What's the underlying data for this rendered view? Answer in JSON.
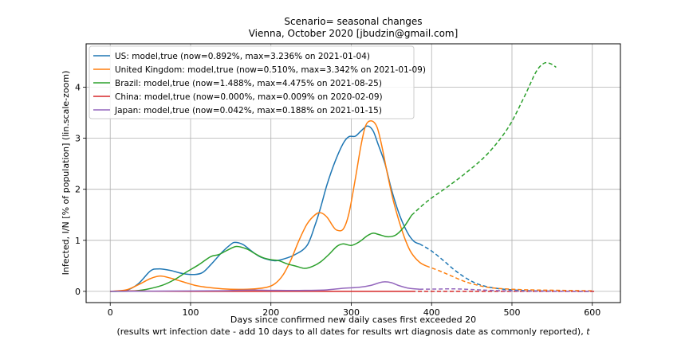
{
  "chart_data": {
    "type": "line",
    "title": "Scenario= seasonal changes",
    "subtitle": "Vienna, October 2020 [jbudzin@gmail.com]",
    "xlabel": "Days since confirmed new daily cases first exceeded 20",
    "xlabel_note": "(results wrt infection date - add 10 days to all dates for results wrt diagnosis date as commonly reported), ",
    "xlabel_var": "t",
    "ylabel": "Infected, I/N [% of population] (lin.scale-zoom)",
    "xlim": [
      -30,
      635
    ],
    "ylim": [
      -0.22,
      4.85
    ],
    "xticks": [
      0,
      100,
      200,
      300,
      400,
      500,
      600
    ],
    "yticks": [
      0,
      1,
      2,
      3,
      4
    ],
    "grid": true,
    "legend_position": "top-left",
    "series": [
      {
        "name": "US: model,true (now=0.892%, max=3.236% on 2021-01-04)",
        "color": "#1f77b4",
        "solid": [
          [
            0,
            0
          ],
          [
            20,
            0.02
          ],
          [
            35,
            0.15
          ],
          [
            50,
            0.4
          ],
          [
            60,
            0.44
          ],
          [
            75,
            0.41
          ],
          [
            90,
            0.35
          ],
          [
            105,
            0.33
          ],
          [
            115,
            0.37
          ],
          [
            125,
            0.52
          ],
          [
            140,
            0.78
          ],
          [
            150,
            0.92
          ],
          [
            155,
            0.96
          ],
          [
            165,
            0.92
          ],
          [
            175,
            0.8
          ],
          [
            185,
            0.69
          ],
          [
            195,
            0.63
          ],
          [
            205,
            0.6
          ],
          [
            215,
            0.63
          ],
          [
            230,
            0.72
          ],
          [
            245,
            0.9
          ],
          [
            255,
            1.3
          ],
          [
            262,
            1.65
          ],
          [
            270,
            2.1
          ],
          [
            280,
            2.55
          ],
          [
            290,
            2.9
          ],
          [
            297,
            3.03
          ],
          [
            305,
            3.04
          ],
          [
            312,
            3.14
          ],
          [
            320,
            3.24
          ],
          [
            327,
            3.15
          ],
          [
            333,
            2.9
          ],
          [
            342,
            2.5
          ],
          [
            350,
            2.0
          ],
          [
            360,
            1.5
          ],
          [
            370,
            1.15
          ],
          [
            378,
            0.98
          ],
          [
            385,
            0.93
          ]
        ],
        "dashed": [
          [
            385,
            0.93
          ],
          [
            400,
            0.79
          ],
          [
            415,
            0.6
          ],
          [
            430,
            0.4
          ],
          [
            445,
            0.24
          ],
          [
            460,
            0.13
          ],
          [
            480,
            0.06
          ],
          [
            510,
            0.02
          ],
          [
            550,
            0.005
          ],
          [
            600,
            0.0
          ]
        ]
      },
      {
        "name": "United Kingdom: model,true (now=0.510%, max=3.342% on 2021-01-09)",
        "color": "#ff7f0e",
        "solid": [
          [
            0,
            0
          ],
          [
            20,
            0.03
          ],
          [
            35,
            0.13
          ],
          [
            50,
            0.25
          ],
          [
            62,
            0.3
          ],
          [
            75,
            0.26
          ],
          [
            90,
            0.19
          ],
          [
            105,
            0.12
          ],
          [
            120,
            0.08
          ],
          [
            140,
            0.05
          ],
          [
            160,
            0.04
          ],
          [
            180,
            0.05
          ],
          [
            195,
            0.08
          ],
          [
            205,
            0.15
          ],
          [
            215,
            0.32
          ],
          [
            225,
            0.62
          ],
          [
            235,
            1.0
          ],
          [
            245,
            1.32
          ],
          [
            255,
            1.5
          ],
          [
            262,
            1.54
          ],
          [
            270,
            1.45
          ],
          [
            277,
            1.28
          ],
          [
            282,
            1.2
          ],
          [
            290,
            1.22
          ],
          [
            297,
            1.52
          ],
          [
            305,
            2.2
          ],
          [
            312,
            2.85
          ],
          [
            318,
            3.25
          ],
          [
            325,
            3.34
          ],
          [
            332,
            3.22
          ],
          [
            338,
            2.85
          ],
          [
            345,
            2.3
          ],
          [
            352,
            1.8
          ],
          [
            360,
            1.35
          ],
          [
            368,
            0.98
          ],
          [
            375,
            0.75
          ],
          [
            385,
            0.57
          ],
          [
            393,
            0.5
          ]
        ],
        "dashed": [
          [
            393,
            0.5
          ],
          [
            410,
            0.4
          ],
          [
            425,
            0.3
          ],
          [
            440,
            0.2
          ],
          [
            455,
            0.13
          ],
          [
            470,
            0.08
          ],
          [
            490,
            0.05
          ],
          [
            520,
            0.03
          ],
          [
            560,
            0.02
          ],
          [
            600,
            0.01
          ]
        ]
      },
      {
        "name": "Brazil: model,true (now=1.488%, max=4.475% on 2021-08-25)",
        "color": "#2ca02c",
        "solid": [
          [
            0,
            0
          ],
          [
            25,
            0.005
          ],
          [
            45,
            0.04
          ],
          [
            65,
            0.12
          ],
          [
            80,
            0.23
          ],
          [
            95,
            0.38
          ],
          [
            110,
            0.52
          ],
          [
            125,
            0.68
          ],
          [
            135,
            0.72
          ],
          [
            145,
            0.8
          ],
          [
            157,
            0.88
          ],
          [
            170,
            0.83
          ],
          [
            180,
            0.74
          ],
          [
            190,
            0.66
          ],
          [
            200,
            0.62
          ],
          [
            210,
            0.6
          ],
          [
            220,
            0.54
          ],
          [
            232,
            0.49
          ],
          [
            242,
            0.45
          ],
          [
            252,
            0.49
          ],
          [
            262,
            0.58
          ],
          [
            272,
            0.72
          ],
          [
            282,
            0.88
          ],
          [
            290,
            0.93
          ],
          [
            300,
            0.9
          ],
          [
            310,
            0.97
          ],
          [
            320,
            1.09
          ],
          [
            327,
            1.14
          ],
          [
            335,
            1.11
          ],
          [
            345,
            1.07
          ],
          [
            355,
            1.1
          ],
          [
            365,
            1.25
          ],
          [
            375,
            1.49
          ]
        ],
        "dashed": [
          [
            375,
            1.49
          ],
          [
            395,
            1.77
          ],
          [
            420,
            2.05
          ],
          [
            445,
            2.35
          ],
          [
            470,
            2.7
          ],
          [
            495,
            3.2
          ],
          [
            515,
            3.8
          ],
          [
            530,
            4.3
          ],
          [
            540,
            4.47
          ],
          [
            548,
            4.46
          ],
          [
            555,
            4.39
          ]
        ]
      },
      {
        "name": "China: model,true (now=0.000%, max=0.009% on 2020-02-09)",
        "color": "#d62728",
        "solid": [
          [
            0,
            0
          ],
          [
            15,
            0.006
          ],
          [
            25,
            0.009
          ],
          [
            40,
            0.006
          ],
          [
            60,
            0.002
          ],
          [
            100,
            0.001
          ],
          [
            200,
            0.0
          ],
          [
            300,
            0.0
          ],
          [
            375,
            0.0
          ]
        ],
        "dashed": [
          [
            375,
            0.0
          ],
          [
            450,
            0.0
          ],
          [
            530,
            0.0
          ],
          [
            605,
            0.0
          ]
        ]
      },
      {
        "name": "Japan: model,true (now=0.042%, max=0.188% on 2021-01-15)",
        "color": "#9467bd",
        "solid": [
          [
            0,
            0
          ],
          [
            50,
            0.004
          ],
          [
            100,
            0.008
          ],
          [
            140,
            0.012
          ],
          [
            160,
            0.022
          ],
          [
            180,
            0.025
          ],
          [
            200,
            0.02
          ],
          [
            220,
            0.018
          ],
          [
            250,
            0.02
          ],
          [
            270,
            0.03
          ],
          [
            290,
            0.06
          ],
          [
            310,
            0.08
          ],
          [
            325,
            0.12
          ],
          [
            335,
            0.17
          ],
          [
            342,
            0.188
          ],
          [
            350,
            0.17
          ],
          [
            360,
            0.11
          ],
          [
            372,
            0.06
          ],
          [
            385,
            0.042
          ]
        ],
        "dashed": [
          [
            385,
            0.042
          ],
          [
            405,
            0.045
          ],
          [
            425,
            0.05
          ],
          [
            445,
            0.04
          ],
          [
            465,
            0.025
          ],
          [
            490,
            0.012
          ],
          [
            520,
            0.005
          ],
          [
            560,
            0.002
          ],
          [
            600,
            0.0
          ]
        ]
      }
    ]
  }
}
